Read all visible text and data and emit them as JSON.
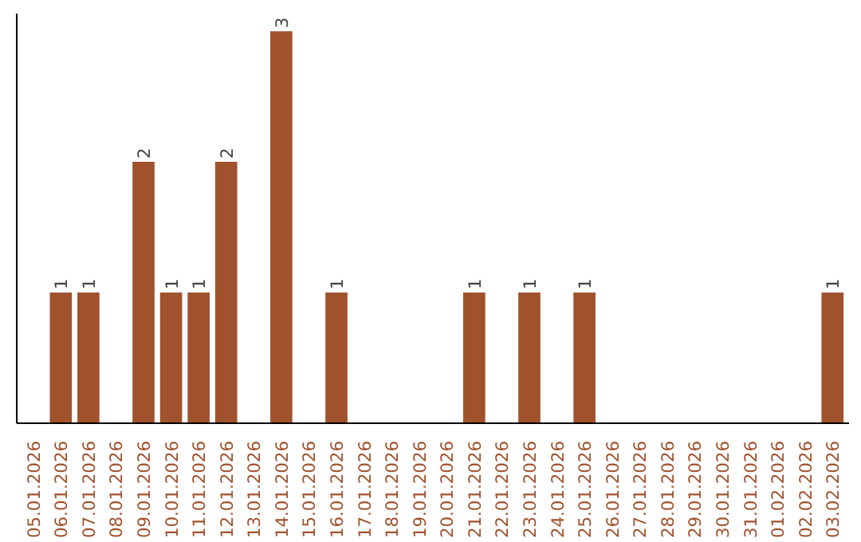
{
  "chart_data": {
    "type": "bar",
    "categories": [
      "05.01.2026",
      "06.01.2026",
      "07.01.2026",
      "08.01.2026",
      "09.01.2026",
      "10.01.2026",
      "11.01.2026",
      "12.01.2026",
      "13.01.2026",
      "14.01.2026",
      "15.01.2026",
      "16.01.2026",
      "17.01.2026",
      "18.01.2026",
      "19.01.2026",
      "20.01.2026",
      "21.01.2026",
      "22.01.2026",
      "23.01.2026",
      "24.01.2026",
      "25.01.2026",
      "26.01.2026",
      "27.01.2026",
      "28.01.2026",
      "29.01.2026",
      "30.01.2026",
      "31.01.2026",
      "01.02.2026",
      "02.02.2026",
      "03.02.2026"
    ],
    "values": [
      0,
      1,
      1,
      0,
      2,
      1,
      1,
      2,
      0,
      3,
      0,
      1,
      0,
      0,
      0,
      0,
      1,
      0,
      1,
      0,
      1,
      0,
      0,
      0,
      0,
      0,
      0,
      0,
      0,
      1
    ],
    "value_labels": [
      null,
      "1",
      "1",
      null,
      "2",
      "1",
      "1",
      "2",
      null,
      "3",
      null,
      "1",
      null,
      null,
      null,
      null,
      "1",
      null,
      "1",
      null,
      "1",
      null,
      null,
      null,
      null,
      null,
      null,
      null,
      null,
      "1"
    ],
    "color": "#a0522d",
    "grid": false
  }
}
